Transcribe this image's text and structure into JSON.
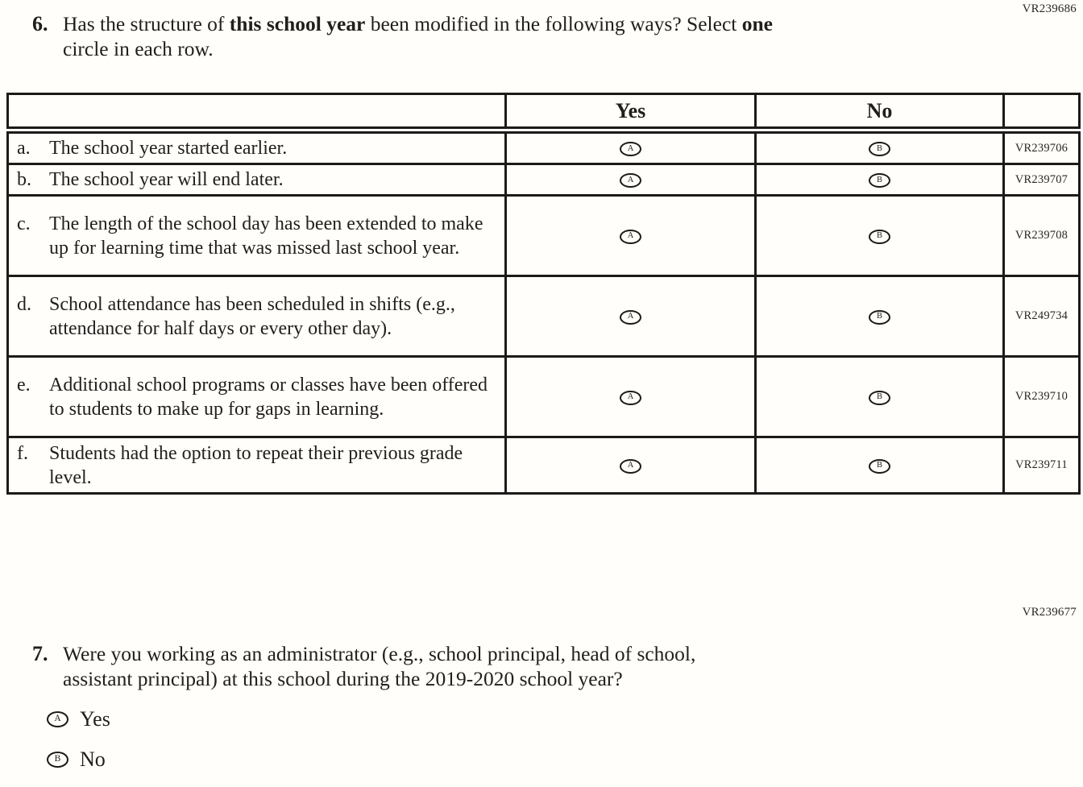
{
  "colors": {
    "ink": "#1d1a17",
    "paper": "#fffefa"
  },
  "codes": {
    "q6_block": "VR239686",
    "q7_block": "VR239677"
  },
  "q6": {
    "number": "6.",
    "line1_pre": "Has the structure of ",
    "line1_bold1": "this school year",
    "line1_mid": " been modified in the following ways? Select ",
    "line1_bold2": "one",
    "line2": "circle in each row.",
    "table": {
      "header_yes": "Yes",
      "header_no": "No",
      "option_letters": {
        "yes": "A",
        "no": "B"
      },
      "rows": [
        {
          "letter": "a.",
          "text": "The school year started earlier.",
          "code": "VR239706"
        },
        {
          "letter": "b.",
          "text": "The school year will end later.",
          "code": "VR239707"
        },
        {
          "letter": "c.",
          "text": "The length of the school day has been extended to make up for learning time that was missed last school year.",
          "code": "VR239708"
        },
        {
          "letter": "d.",
          "text": "School attendance has been scheduled in shifts (e.g., attendance for half days or every other day).",
          "code": "VR249734"
        },
        {
          "letter": "e.",
          "text": "Additional school programs or classes have been offered to students to make up for gaps in learning.",
          "code": "VR239710"
        },
        {
          "letter": "f.",
          "text": "Students had the option to repeat their previous grade level.",
          "code": "VR239711"
        }
      ]
    }
  },
  "q7": {
    "number": "7.",
    "line1": "Were you working as an administrator (e.g., school principal, head of school,",
    "line2": "assistant principal) at this school during the 2019-2020 school year?",
    "options": [
      {
        "letter": "A",
        "label": "Yes"
      },
      {
        "letter": "B",
        "label": "No"
      }
    ]
  }
}
